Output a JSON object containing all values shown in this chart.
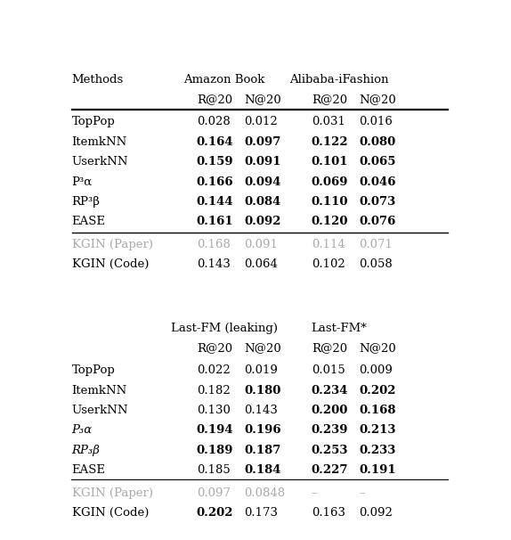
{
  "fig_width": 5.74,
  "fig_height": 6.06,
  "dpi": 100,
  "top_section": {
    "rows": [
      {
        "method": "TopPop",
        "vals": [
          "0.028",
          "0.012",
          "0.031",
          "0.016"
        ],
        "bold": [
          false,
          false,
          false,
          false
        ],
        "italic_method": false,
        "gray": false
      },
      {
        "method": "ItemkNN",
        "vals": [
          "0.164",
          "0.097",
          "0.122",
          "0.080"
        ],
        "bold": [
          true,
          true,
          true,
          true
        ],
        "italic_method": false,
        "gray": false
      },
      {
        "method": "UserkNN",
        "vals": [
          "0.159",
          "0.091",
          "0.101",
          "0.065"
        ],
        "bold": [
          true,
          true,
          true,
          true
        ],
        "italic_method": false,
        "gray": false
      },
      {
        "method": "P³α",
        "vals": [
          "0.166",
          "0.094",
          "0.069",
          "0.046"
        ],
        "bold": [
          true,
          true,
          true,
          true
        ],
        "italic_method": false,
        "gray": false
      },
      {
        "method": "RP³β",
        "vals": [
          "0.144",
          "0.084",
          "0.110",
          "0.073"
        ],
        "bold": [
          true,
          true,
          true,
          true
        ],
        "italic_method": false,
        "gray": false
      },
      {
        "method": "EASE",
        "vals": [
          "0.161",
          "0.092",
          "0.120",
          "0.076"
        ],
        "bold": [
          true,
          true,
          true,
          true
        ],
        "italic_method": false,
        "gray": false
      },
      {
        "method": "KGIN (Paper)",
        "vals": [
          "0.168",
          "0.091",
          "0.114",
          "0.071"
        ],
        "bold": [
          false,
          false,
          false,
          false
        ],
        "italic_method": false,
        "gray": true
      },
      {
        "method": "KGIN (Code)",
        "vals": [
          "0.143",
          "0.064",
          "0.102",
          "0.058"
        ],
        "bold": [
          false,
          false,
          false,
          false
        ],
        "italic_method": false,
        "gray": false
      }
    ]
  },
  "bottom_section": {
    "rows": [
      {
        "method": "TopPop",
        "vals": [
          "0.022",
          "0.019",
          "0.015",
          "0.009"
        ],
        "bold": [
          false,
          false,
          false,
          false
        ],
        "italic_method": false,
        "gray": false
      },
      {
        "method": "ItemkNN",
        "vals": [
          "0.182",
          "0.180",
          "0.234",
          "0.202"
        ],
        "bold": [
          false,
          true,
          true,
          true
        ],
        "italic_method": false,
        "gray": false
      },
      {
        "method": "UserkNN",
        "vals": [
          "0.130",
          "0.143",
          "0.200",
          "0.168"
        ],
        "bold": [
          false,
          false,
          true,
          true
        ],
        "italic_method": false,
        "gray": false
      },
      {
        "method": "P₃α",
        "vals": [
          "0.194",
          "0.196",
          "0.239",
          "0.213"
        ],
        "bold": [
          true,
          true,
          true,
          true
        ],
        "italic_method": true,
        "gray": false
      },
      {
        "method": "RP₃β",
        "vals": [
          "0.189",
          "0.187",
          "0.253",
          "0.233"
        ],
        "bold": [
          true,
          true,
          true,
          true
        ],
        "italic_method": true,
        "gray": false
      },
      {
        "method": "EASE",
        "vals": [
          "0.185",
          "0.184",
          "0.227",
          "0.191"
        ],
        "bold": [
          false,
          true,
          true,
          true
        ],
        "italic_method": false,
        "gray": false
      },
      {
        "method": "KGIN (Paper)",
        "vals": [
          "0.097",
          "0.0848",
          "–",
          "–"
        ],
        "bold": [
          false,
          false,
          false,
          false
        ],
        "italic_method": false,
        "gray": true
      },
      {
        "method": "KGIN (Code)",
        "vals": [
          "0.202",
          "0.173",
          "0.163",
          "0.092"
        ],
        "bold": [
          true,
          false,
          false,
          false
        ],
        "italic_method": false,
        "gray": false
      }
    ]
  },
  "colors": {
    "gray_text": "#aaaaaa",
    "black_text": "#000000",
    "bg_color": "#ffffff"
  }
}
